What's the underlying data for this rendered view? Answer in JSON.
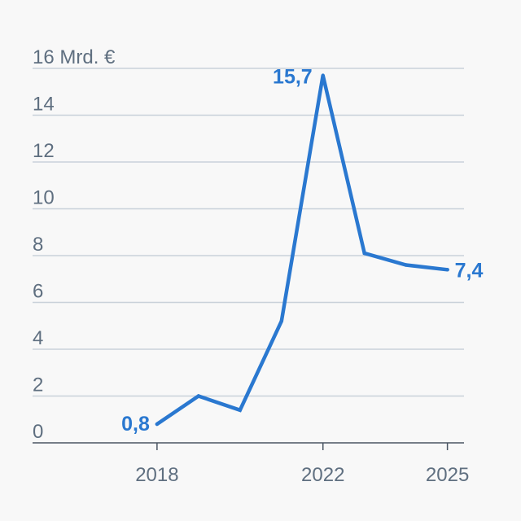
{
  "chart_data": {
    "type": "line",
    "title": "",
    "xlabel": "",
    "ylabel": "Mrd. €",
    "x": [
      2018,
      2019,
      2020,
      2021,
      2022,
      2023,
      2024,
      2025
    ],
    "series": [
      {
        "name": "Mrd. €",
        "values": [
          0.8,
          2.0,
          1.4,
          5.2,
          15.7,
          8.1,
          7.6,
          7.4
        ],
        "color": "#2a78d0"
      }
    ],
    "ylim": [
      0,
      16
    ],
    "xlim": [
      2015,
      2025.4
    ],
    "yticks": [
      0,
      2,
      4,
      6,
      8,
      10,
      12,
      14,
      16
    ],
    "y_tick_labels": [
      "0",
      "2",
      "4",
      "6",
      "8",
      "10",
      "12",
      "14",
      "16 Mrd. €"
    ],
    "xticks": [
      2018,
      2022,
      2025
    ],
    "x_tick_labels": [
      "2018",
      "2022",
      "2025"
    ],
    "annotations": [
      {
        "x": 2018,
        "y": 0.8,
        "text": "0,8"
      },
      {
        "x": 2022,
        "y": 15.7,
        "text": "15,7"
      },
      {
        "x": 2025,
        "y": 7.4,
        "text": "7,4"
      }
    ],
    "grid": true,
    "colors": {
      "line": "#2a78d0",
      "grid": "#c9d1da",
      "axis": "#4a5563",
      "tick_text": "#5f6f80",
      "background": "#f8f8f8"
    }
  }
}
